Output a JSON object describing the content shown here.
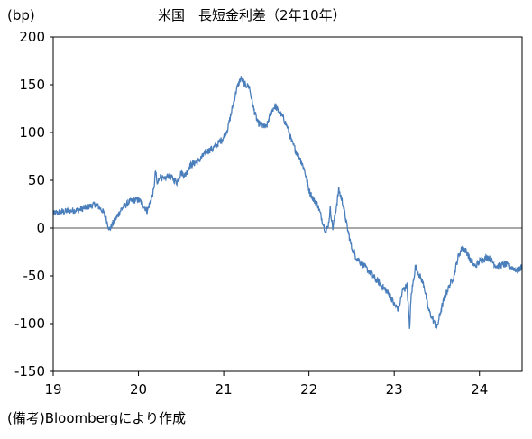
{
  "chart_data": {
    "type": "line",
    "title": "米国　長短金利差（2年10年）",
    "unit_label": "(bp)",
    "xlabel": "",
    "ylabel": "",
    "x_tick_labels": [
      "19",
      "20",
      "21",
      "22",
      "23",
      "24"
    ],
    "y_tick_labels": [
      "200",
      "150",
      "100",
      "50",
      "0",
      "-50",
      "-100",
      "-150"
    ],
    "ylim": [
      -150,
      200
    ],
    "xlim": [
      2019.0,
      2024.5
    ],
    "grid": false,
    "zero_line": true,
    "line_color": "#4a7ebb",
    "zero_line_color": "#8c8c8c",
    "series": [
      {
        "x": [
          2019.0,
          2019.1,
          2019.2,
          2019.3,
          2019.4,
          2019.5,
          2019.58,
          2019.62,
          2019.66,
          2019.7,
          2019.75,
          2019.8,
          2019.9,
          2020.0,
          2020.05,
          2020.1,
          2020.15,
          2020.18,
          2020.2,
          2020.22,
          2020.25,
          2020.3,
          2020.35,
          2020.4,
          2020.45,
          2020.5,
          2020.55,
          2020.6,
          2020.7,
          2020.75,
          2020.8,
          2020.9,
          2021.0,
          2021.05,
          2021.1,
          2021.15,
          2021.2,
          2021.25,
          2021.3,
          2021.35,
          2021.4,
          2021.5,
          2021.55,
          2021.6,
          2021.7,
          2021.75,
          2021.8,
          2021.85,
          2021.9,
          2021.95,
          2022.0,
          2022.05,
          2022.1,
          2022.15,
          2022.2,
          2022.23,
          2022.25,
          2022.28,
          2022.3,
          2022.35,
          2022.4,
          2022.45,
          2022.5,
          2022.55,
          2022.6,
          2022.65,
          2022.7,
          2022.75,
          2022.8,
          2022.85,
          2022.9,
          2022.95,
          2023.0,
          2023.05,
          2023.1,
          2023.15,
          2023.18,
          2023.2,
          2023.25,
          2023.3,
          2023.35,
          2023.4,
          2023.45,
          2023.5,
          2023.55,
          2023.6,
          2023.65,
          2023.7,
          2023.75,
          2023.8,
          2023.85,
          2023.9,
          2023.95,
          2024.0,
          2024.1,
          2024.2,
          2024.3,
          2024.4,
          2024.45,
          2024.5
        ],
        "y": [
          15,
          17,
          18,
          19,
          22,
          25,
          18,
          10,
          -2,
          5,
          12,
          20,
          28,
          30,
          25,
          18,
          30,
          40,
          60,
          45,
          55,
          50,
          55,
          52,
          48,
          58,
          55,
          65,
          70,
          75,
          80,
          85,
          95,
          105,
          125,
          145,
          157,
          150,
          148,
          125,
          110,
          105,
          120,
          128,
          115,
          105,
          90,
          80,
          72,
          60,
          40,
          30,
          25,
          10,
          -5,
          5,
          20,
          0,
          10,
          40,
          25,
          0,
          -20,
          -30,
          -35,
          -40,
          -45,
          -50,
          -55,
          -60,
          -65,
          -70,
          -80,
          -85,
          -65,
          -60,
          -105,
          -70,
          -40,
          -50,
          -60,
          -85,
          -95,
          -105,
          -85,
          -70,
          -60,
          -50,
          -30,
          -20,
          -25,
          -35,
          -40,
          -35,
          -30,
          -40,
          -38,
          -42,
          -45,
          -40
        ]
      }
    ],
    "source_note": "(備考)Bloombergにより作成"
  }
}
